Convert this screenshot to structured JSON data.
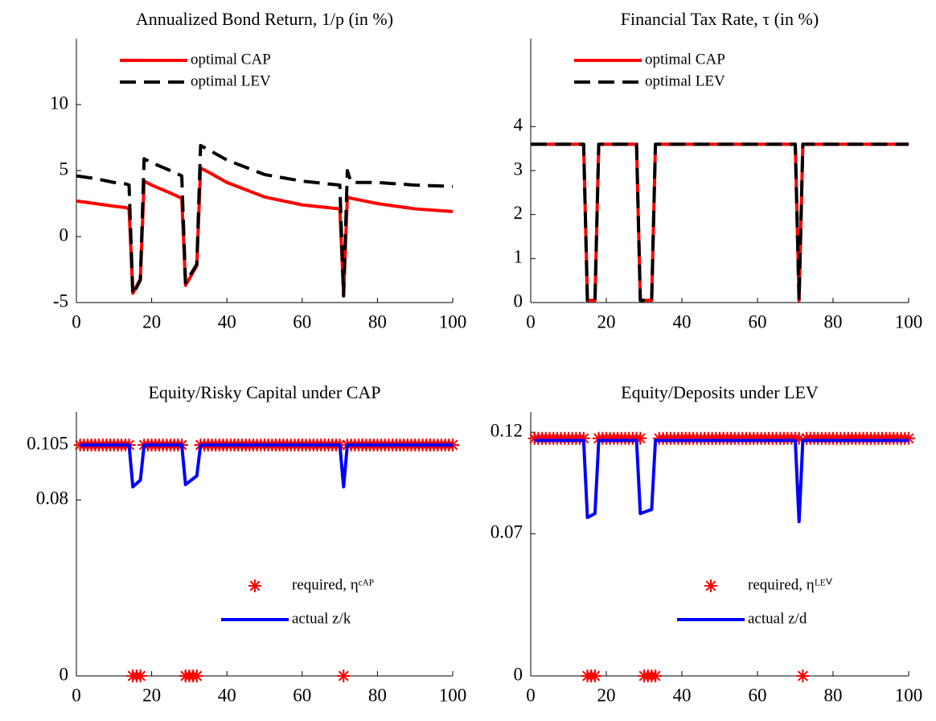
{
  "chart_data": [
    {
      "type": "line",
      "title": "Annualized Bond Return, 1/p  (in %)",
      "legend": "upper left",
      "xlim": [
        0,
        100
      ],
      "xticks": [
        0,
        20,
        40,
        60,
        80,
        100
      ],
      "ylim": [
        -5,
        15
      ],
      "yticks": [
        -5,
        0,
        5,
        10
      ],
      "series": [
        {
          "name": "optimal CAP",
          "color": "#ff0000",
          "linestyle": "solid",
          "x": [
            0,
            5,
            10,
            13,
            14,
            15,
            17,
            18,
            20,
            25,
            28,
            29,
            32,
            33,
            35,
            40,
            50,
            60,
            70,
            71,
            72,
            73,
            80,
            90,
            100
          ],
          "values": [
            2.7,
            2.5,
            2.3,
            2.2,
            2.1,
            -4.3,
            -3.2,
            4.2,
            3.9,
            3.3,
            2.9,
            -3.7,
            -2.2,
            5.2,
            4.9,
            4.1,
            3.0,
            2.4,
            2.1,
            -4.4,
            3.0,
            2.9,
            2.5,
            2.1,
            1.9
          ]
        },
        {
          "name": "optimal LEV",
          "color": "#000000",
          "linestyle": "dashed",
          "x": [
            0,
            5,
            10,
            13,
            14,
            15,
            17,
            18,
            20,
            25,
            28,
            29,
            32,
            33,
            35,
            40,
            50,
            60,
            70,
            71,
            72,
            73,
            80,
            90,
            100
          ],
          "values": [
            4.6,
            4.4,
            4.1,
            4.0,
            3.9,
            -4.4,
            -3.3,
            5.9,
            5.6,
            5.0,
            4.6,
            -3.5,
            -2.1,
            6.9,
            6.6,
            5.8,
            4.7,
            4.2,
            3.9,
            -4.5,
            5.0,
            4.1,
            4.1,
            3.9,
            3.8
          ]
        }
      ]
    },
    {
      "type": "line",
      "title": "Financial Tax Rate,  τ (in %)",
      "legend": "upper left",
      "xlim": [
        0,
        100
      ],
      "xticks": [
        0,
        20,
        40,
        60,
        80,
        100
      ],
      "ylim": [
        0,
        6
      ],
      "yticks": [
        0,
        1,
        2,
        3,
        4
      ],
      "series": [
        {
          "name": "optimal CAP",
          "color": "#ff0000",
          "linestyle": "solid",
          "x": [
            0,
            14,
            15,
            17,
            18,
            28,
            29,
            32,
            33,
            70,
            71,
            72,
            100
          ],
          "values": [
            3.6,
            3.6,
            0.05,
            0.05,
            3.6,
            3.6,
            0.05,
            0.05,
            3.6,
            3.6,
            0.05,
            3.6,
            3.6
          ]
        },
        {
          "name": "optimal LEV",
          "color": "#000000",
          "linestyle": "dashed",
          "x": [
            0,
            14,
            15,
            17,
            18,
            28,
            29,
            32,
            33,
            70,
            71,
            72,
            100
          ],
          "values": [
            3.6,
            3.6,
            0.05,
            0.05,
            3.6,
            3.6,
            0.05,
            0.05,
            3.6,
            3.6,
            0.05,
            3.6,
            3.6
          ]
        }
      ]
    },
    {
      "type": "line",
      "title": "Equity/Risky Capital under CAP",
      "legend": "lower right",
      "xlim": [
        0,
        100
      ],
      "xticks": [
        0,
        20,
        40,
        60,
        80,
        100
      ],
      "ylim": [
        0,
        0.12
      ],
      "yticks": [
        0,
        0.08,
        0.105
      ],
      "series": [
        {
          "name": "required, ηᶜᴬᴾ",
          "color": "#ff0000",
          "kind": "scatter",
          "x": [
            1,
            2,
            3,
            4,
            5,
            6,
            7,
            8,
            9,
            10,
            11,
            12,
            13,
            14,
            15,
            16,
            17,
            18,
            19,
            20,
            21,
            22,
            23,
            24,
            25,
            26,
            27,
            28,
            29,
            30,
            31,
            32,
            33,
            34,
            35,
            36,
            37,
            38,
            39,
            40,
            41,
            42,
            43,
            44,
            45,
            46,
            47,
            48,
            49,
            50,
            51,
            52,
            53,
            54,
            55,
            56,
            57,
            58,
            59,
            60,
            61,
            62,
            63,
            64,
            65,
            66,
            67,
            68,
            69,
            70,
            71,
            72,
            73,
            74,
            75,
            76,
            77,
            78,
            79,
            80,
            81,
            82,
            83,
            84,
            85,
            86,
            87,
            88,
            89,
            90,
            91,
            92,
            93,
            94,
            95,
            96,
            97,
            98,
            99,
            100
          ],
          "values": [
            0.105,
            0.105,
            0.105,
            0.105,
            0.105,
            0.105,
            0.105,
            0.105,
            0.105,
            0.105,
            0.105,
            0.105,
            0.105,
            0.105,
            0,
            0,
            0,
            0.105,
            0.105,
            0.105,
            0.105,
            0.105,
            0.105,
            0.105,
            0.105,
            0.105,
            0.105,
            0.105,
            0,
            0,
            0,
            0,
            0.105,
            0.105,
            0.105,
            0.105,
            0.105,
            0.105,
            0.105,
            0.105,
            0.105,
            0.105,
            0.105,
            0.105,
            0.105,
            0.105,
            0.105,
            0.105,
            0.105,
            0.105,
            0.105,
            0.105,
            0.105,
            0.105,
            0.105,
            0.105,
            0.105,
            0.105,
            0.105,
            0.105,
            0.105,
            0.105,
            0.105,
            0.105,
            0.105,
            0.105,
            0.105,
            0.105,
            0.105,
            0.105,
            0,
            0.105,
            0.105,
            0.105,
            0.105,
            0.105,
            0.105,
            0.105,
            0.105,
            0.105,
            0.105,
            0.105,
            0.105,
            0.105,
            0.105,
            0.105,
            0.105,
            0.105,
            0.105,
            0.105,
            0.105,
            0.105,
            0.105,
            0.105,
            0.105,
            0.105,
            0.105,
            0.105,
            0.105,
            0.105
          ]
        },
        {
          "name": "actual z/k",
          "color": "#0000ff",
          "linestyle": "solid",
          "x": [
            1,
            14,
            15,
            17,
            18,
            28,
            29,
            32,
            33,
            70,
            71,
            72,
            100
          ],
          "values": [
            0.105,
            0.105,
            0.086,
            0.089,
            0.105,
            0.105,
            0.087,
            0.091,
            0.105,
            0.105,
            0.086,
            0.105,
            0.105
          ]
        }
      ]
    },
    {
      "type": "line",
      "title": "Equity/Deposits under LEV",
      "legend": "lower right",
      "xlim": [
        0,
        100
      ],
      "xticks": [
        0,
        20,
        40,
        60,
        80,
        100
      ],
      "ylim": [
        0,
        0.13
      ],
      "yticks": [
        0,
        0.07,
        0.12
      ],
      "series": [
        {
          "name": "required, ηᴸᴱⱽ",
          "color": "#ff0000",
          "kind": "scatter",
          "x": [
            1,
            2,
            3,
            4,
            5,
            6,
            7,
            8,
            9,
            10,
            11,
            12,
            13,
            14,
            15,
            16,
            17,
            18,
            19,
            20,
            21,
            22,
            23,
            24,
            25,
            26,
            27,
            28,
            29,
            30,
            31,
            32,
            33,
            34,
            35,
            36,
            37,
            38,
            39,
            40,
            41,
            42,
            43,
            44,
            45,
            46,
            47,
            48,
            49,
            50,
            51,
            52,
            53,
            54,
            55,
            56,
            57,
            58,
            59,
            60,
            61,
            62,
            63,
            64,
            65,
            66,
            67,
            68,
            69,
            70,
            71,
            72,
            73,
            74,
            75,
            76,
            77,
            78,
            79,
            80,
            81,
            82,
            83,
            84,
            85,
            86,
            87,
            88,
            89,
            90,
            91,
            92,
            93,
            94,
            95,
            96,
            97,
            98,
            99,
            100
          ],
          "values": [
            0.117,
            0.117,
            0.117,
            0.117,
            0.117,
            0.117,
            0.117,
            0.117,
            0.117,
            0.117,
            0.117,
            0.117,
            0.117,
            0.117,
            0,
            0,
            0,
            0.117,
            0.117,
            0.117,
            0.117,
            0.117,
            0.117,
            0.117,
            0.117,
            0.117,
            0.117,
            0.117,
            0.117,
            0,
            0,
            0,
            0,
            0.117,
            0.117,
            0.117,
            0.117,
            0.117,
            0.117,
            0.117,
            0.117,
            0.117,
            0.117,
            0.117,
            0.117,
            0.117,
            0.117,
            0.117,
            0.117,
            0.117,
            0.117,
            0.117,
            0.117,
            0.117,
            0.117,
            0.117,
            0.117,
            0.117,
            0.117,
            0.117,
            0.117,
            0.117,
            0.117,
            0.117,
            0.117,
            0.117,
            0.117,
            0.117,
            0.117,
            0.117,
            0.117,
            0,
            0.117,
            0.117,
            0.117,
            0.117,
            0.117,
            0.117,
            0.117,
            0.117,
            0.117,
            0.117,
            0.117,
            0.117,
            0.117,
            0.117,
            0.117,
            0.117,
            0.117,
            0.117,
            0.117,
            0.117,
            0.117,
            0.117,
            0.117,
            0.117,
            0.117,
            0.117,
            0.117,
            0.117
          ]
        },
        {
          "name": "actual z/d",
          "color": "#0000ff",
          "linestyle": "solid",
          "x": [
            1,
            14,
            15,
            17,
            18,
            28,
            29,
            32,
            33,
            70,
            71,
            72,
            100
          ],
          "values": [
            0.116,
            0.116,
            0.078,
            0.08,
            0.116,
            0.116,
            0.08,
            0.082,
            0.116,
            0.116,
            0.076,
            0.116,
            0.116
          ]
        }
      ]
    }
  ]
}
